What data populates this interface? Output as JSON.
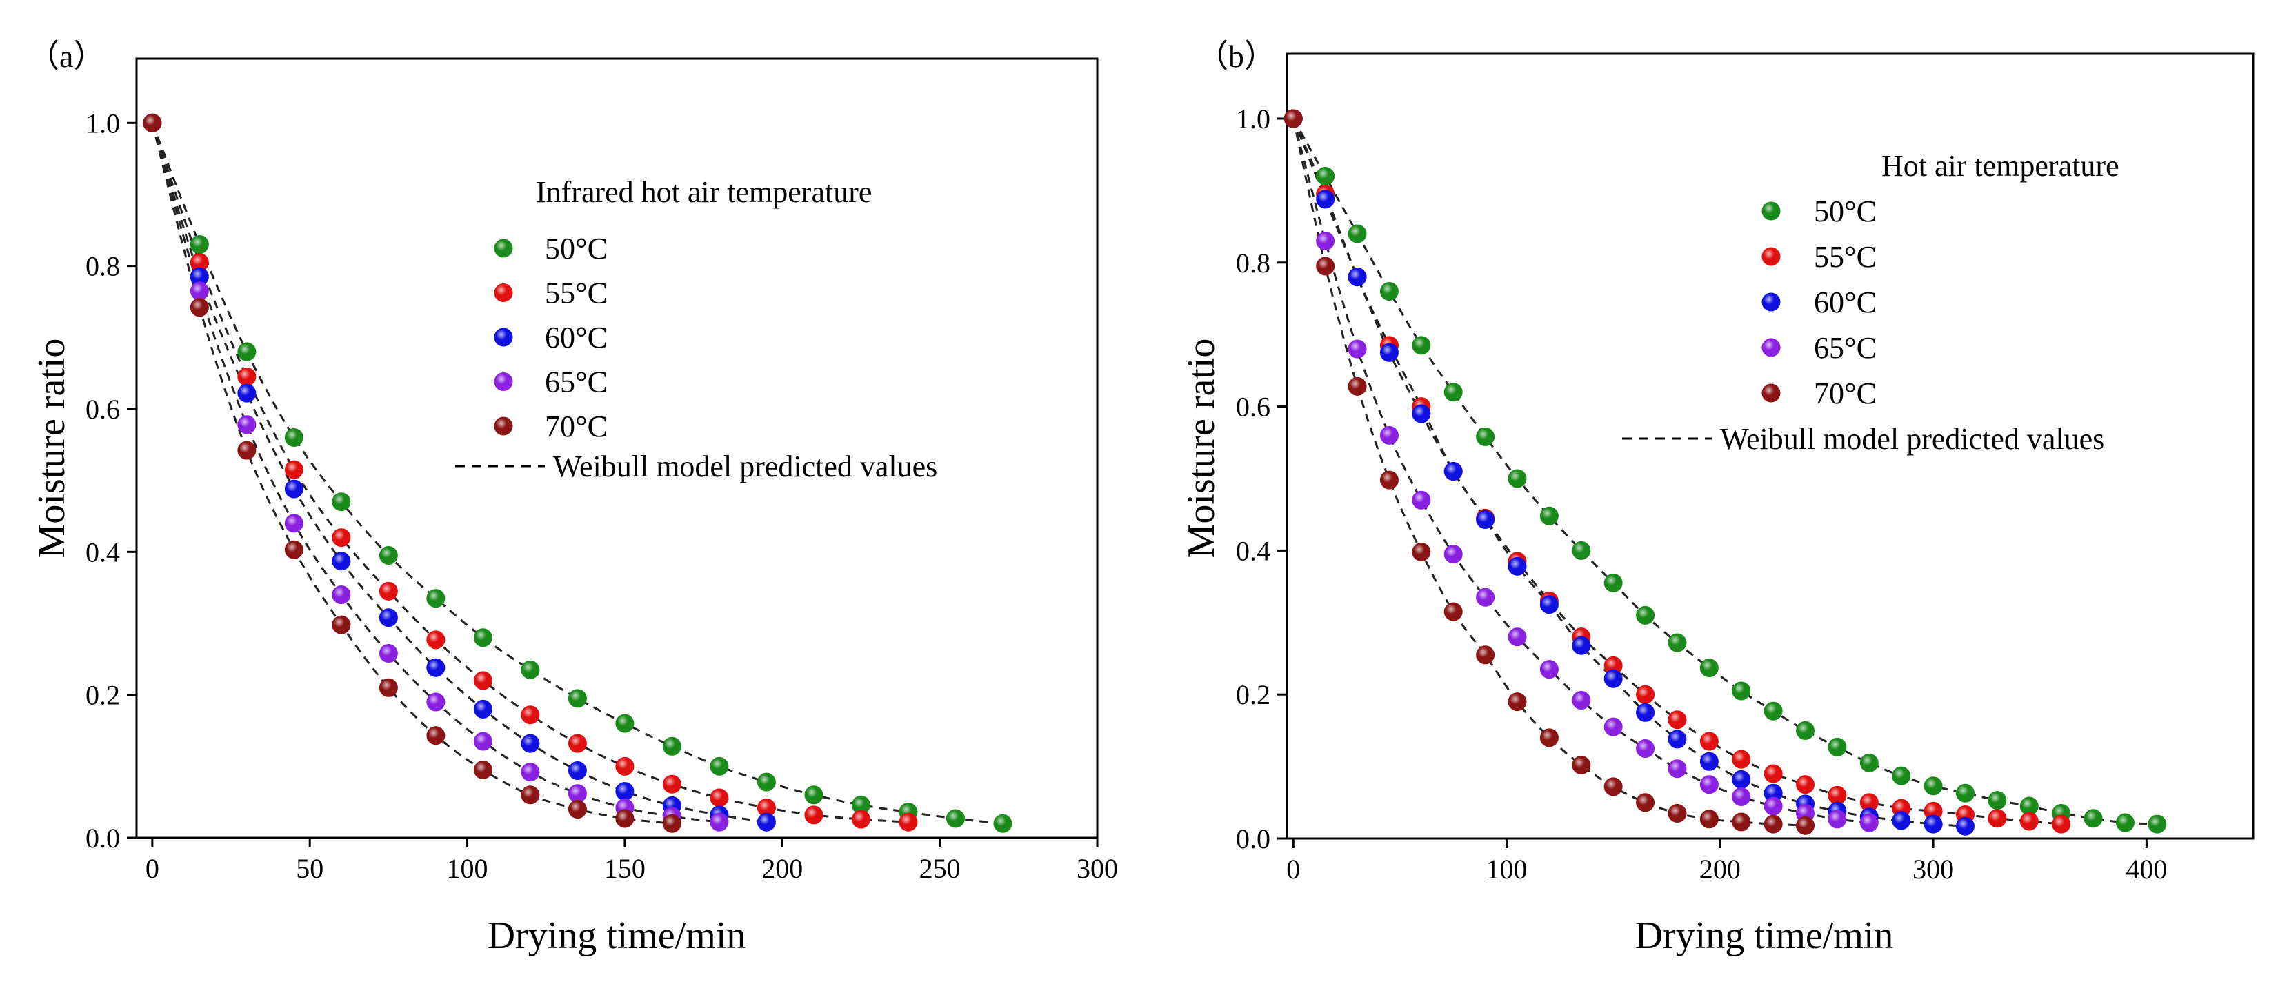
{
  "chart_data": [
    {
      "panel_label": "（a）",
      "type": "scatter",
      "xlabel": "Drying time/min",
      "ylabel": "Moisture ratio",
      "xlim": [
        -5,
        300
      ],
      "ylim": [
        0,
        1.09
      ],
      "xticks": [
        0,
        50,
        100,
        150,
        200,
        250,
        300
      ],
      "yticks": [
        0.0,
        0.2,
        0.4,
        0.6,
        0.8,
        1.0
      ],
      "xtick_labels": [
        "0",
        "50",
        "100",
        "150",
        "200",
        "250",
        "300"
      ],
      "ytick_labels": [
        "0.0",
        "0.2",
        "0.4",
        "0.6",
        "0.8",
        "1.0"
      ],
      "legend_title": "Infrared hot air temperature",
      "legend_position": "top-right",
      "fit_label": "Weibull model predicted values",
      "series": [
        {
          "name": "50°C",
          "color": "#1a8a1a",
          "x": [
            0,
            15,
            30,
            45,
            60,
            75,
            90,
            105,
            120,
            135,
            150,
            165,
            180,
            195,
            210,
            225,
            240,
            255,
            270
          ],
          "y": [
            1.0,
            0.83,
            0.68,
            0.56,
            0.47,
            0.395,
            0.335,
            0.28,
            0.235,
            0.195,
            0.16,
            0.128,
            0.1,
            0.078,
            0.06,
            0.046,
            0.036,
            0.027,
            0.02
          ]
        },
        {
          "name": "55°C",
          "color": "#e01010",
          "x": [
            0,
            15,
            30,
            45,
            60,
            75,
            90,
            105,
            120,
            135,
            150,
            165,
            180,
            195,
            210,
            225,
            240
          ],
          "y": [
            1.0,
            0.805,
            0.645,
            0.515,
            0.42,
            0.345,
            0.277,
            0.22,
            0.172,
            0.132,
            0.1,
            0.075,
            0.056,
            0.042,
            0.032,
            0.026,
            0.022
          ]
        },
        {
          "name": "60°C",
          "color": "#1010e0",
          "x": [
            0,
            15,
            30,
            45,
            60,
            75,
            90,
            105,
            120,
            135,
            150,
            165,
            180,
            195
          ],
          "y": [
            1.0,
            0.785,
            0.622,
            0.488,
            0.387,
            0.308,
            0.238,
            0.18,
            0.132,
            0.094,
            0.065,
            0.045,
            0.032,
            0.022
          ]
        },
        {
          "name": "65°C",
          "color": "#8a20e0",
          "x": [
            0,
            15,
            30,
            45,
            60,
            75,
            90,
            105,
            120,
            135,
            150,
            165,
            180
          ],
          "y": [
            1.0,
            0.765,
            0.578,
            0.44,
            0.34,
            0.258,
            0.19,
            0.135,
            0.092,
            0.062,
            0.042,
            0.03,
            0.022
          ]
        },
        {
          "name": "70°C",
          "color": "#8b1414",
          "x": [
            0,
            15,
            30,
            45,
            60,
            75,
            90,
            105,
            120,
            135,
            150,
            165
          ],
          "y": [
            1.0,
            0.742,
            0.542,
            0.403,
            0.298,
            0.21,
            0.143,
            0.095,
            0.06,
            0.04,
            0.027,
            0.02
          ]
        }
      ]
    },
    {
      "panel_label": "（b）",
      "type": "scatter",
      "xlabel": "Drying time/min",
      "ylabel": "Moisture ratio",
      "xlim": [
        -3,
        450
      ],
      "ylim": [
        0,
        1.09
      ],
      "xticks": [
        0,
        100,
        200,
        300,
        400
      ],
      "yticks": [
        0.0,
        0.2,
        0.4,
        0.6,
        0.8,
        1.0
      ],
      "xtick_labels": [
        "0",
        "100",
        "200",
        "300",
        "400"
      ],
      "ytick_labels": [
        "0.0",
        "0.2",
        "0.4",
        "0.6",
        "0.8",
        "1.0"
      ],
      "legend_title": "Hot air temperature",
      "legend_position": "top-right",
      "fit_label": "Weibull model predicted values",
      "series": [
        {
          "name": "50°C",
          "color": "#1a8a1a",
          "x": [
            0,
            15,
            30,
            45,
            60,
            75,
            90,
            105,
            120,
            135,
            150,
            165,
            180,
            195,
            210,
            225,
            240,
            255,
            270,
            285,
            300,
            315,
            330,
            345,
            360,
            375,
            390,
            405
          ],
          "y": [
            1.0,
            0.92,
            0.84,
            0.76,
            0.685,
            0.62,
            0.558,
            0.5,
            0.448,
            0.4,
            0.355,
            0.31,
            0.272,
            0.237,
            0.205,
            0.177,
            0.15,
            0.127,
            0.105,
            0.087,
            0.073,
            0.063,
            0.053,
            0.045,
            0.035,
            0.028,
            0.022,
            0.02
          ]
        },
        {
          "name": "55°C",
          "color": "#e01010",
          "x": [
            0,
            15,
            30,
            45,
            60,
            75,
            90,
            105,
            120,
            135,
            150,
            165,
            180,
            195,
            210,
            225,
            240,
            255,
            270,
            285,
            300,
            315,
            330,
            345,
            360
          ],
          "y": [
            1.0,
            0.895,
            0.78,
            0.685,
            0.6,
            0.51,
            0.445,
            0.385,
            0.33,
            0.28,
            0.24,
            0.2,
            0.165,
            0.135,
            0.11,
            0.09,
            0.075,
            0.06,
            0.05,
            0.042,
            0.038,
            0.033,
            0.028,
            0.024,
            0.02
          ]
        },
        {
          "name": "60°C",
          "color": "#1010e0",
          "x": [
            0,
            15,
            30,
            45,
            60,
            75,
            90,
            105,
            120,
            135,
            150,
            165,
            180,
            195,
            210,
            225,
            240,
            255,
            270,
            285,
            300,
            315
          ],
          "y": [
            1.0,
            0.888,
            0.78,
            0.675,
            0.59,
            0.51,
            0.443,
            0.378,
            0.325,
            0.268,
            0.222,
            0.175,
            0.138,
            0.107,
            0.082,
            0.063,
            0.048,
            0.038,
            0.03,
            0.025,
            0.02,
            0.017
          ]
        },
        {
          "name": "65°C",
          "color": "#8a20e0",
          "x": [
            0,
            15,
            30,
            45,
            60,
            75,
            90,
            105,
            120,
            135,
            150,
            165,
            180,
            195,
            210,
            225,
            240,
            255,
            270
          ],
          "y": [
            1.0,
            0.83,
            0.68,
            0.56,
            0.47,
            0.395,
            0.335,
            0.28,
            0.235,
            0.192,
            0.155,
            0.125,
            0.097,
            0.075,
            0.058,
            0.045,
            0.035,
            0.027,
            0.022
          ]
        },
        {
          "name": "70°C",
          "color": "#8b1414",
          "x": [
            0,
            15,
            30,
            45,
            60,
            75,
            90,
            105,
            120,
            135,
            150,
            165,
            180,
            195,
            210,
            225,
            240
          ],
          "y": [
            1.0,
            0.795,
            0.628,
            0.498,
            0.398,
            0.315,
            0.255,
            0.19,
            0.14,
            0.102,
            0.072,
            0.05,
            0.035,
            0.027,
            0.023,
            0.02,
            0.018
          ]
        }
      ]
    }
  ]
}
